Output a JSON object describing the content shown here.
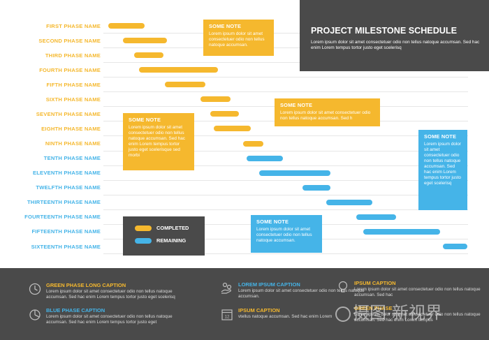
{
  "colors": {
    "yellow": "#f5b82e",
    "blue": "#45b4e8",
    "dark": "#4a4a4a"
  },
  "title": {
    "heading": "PROJECT MILESTONE SCHEDULE",
    "text": "Lorem ipsum dolor sit amet consectetuer odio non tellus natoque accumsan. Sed hac enim Lorem tempus tortor justo eget scelerisq"
  },
  "phases": [
    {
      "name": "FIRST PHASE NAME",
      "status": "completed",
      "start": 0.0,
      "end": 0.101
    },
    {
      "name": "SECOND PHASE NAME",
      "status": "completed",
      "start": 0.041,
      "end": 0.164
    },
    {
      "name": "THIRD PHASE NAME",
      "status": "completed",
      "start": 0.072,
      "end": 0.154
    },
    {
      "name": "FOURTH PHASE NAME",
      "status": "completed",
      "start": 0.085,
      "end": 0.306
    },
    {
      "name": "FIFTH PHASE NAME",
      "status": "completed",
      "start": 0.157,
      "end": 0.271
    },
    {
      "name": "SIXTH PHASE NAME",
      "status": "completed",
      "start": 0.256,
      "end": 0.341
    },
    {
      "name": "SEVENTH PHASE NAME",
      "status": "completed",
      "start": 0.284,
      "end": 0.363
    },
    {
      "name": "EIGHTH PHASE NAME",
      "status": "completed",
      "start": 0.293,
      "end": 0.397
    },
    {
      "name": "NINTH PHASE NAME",
      "status": "completed",
      "start": 0.375,
      "end": 0.432
    },
    {
      "name": "TENTH PHASE NAME",
      "status": "remaining",
      "start": 0.385,
      "end": 0.486
    },
    {
      "name": "ELEVENTH PHASE NAME",
      "status": "remaining",
      "start": 0.42,
      "end": 0.618
    },
    {
      "name": "TWELFTH PHASE NAME",
      "status": "remaining",
      "start": 0.54,
      "end": 0.618
    },
    {
      "name": "THIRTEENTH PHASE NAME",
      "status": "remaining",
      "start": 0.606,
      "end": 0.735
    },
    {
      "name": "FOURTEENTH PHASE NAME",
      "status": "remaining",
      "start": 0.691,
      "end": 0.801
    },
    {
      "name": "FIFTEENTH PHASE NAME",
      "status": "remaining",
      "start": 0.71,
      "end": 0.924
    },
    {
      "name": "SIXTEENTH PHASE NAME",
      "status": "remaining",
      "start": 0.931,
      "end": 1.0
    }
  ],
  "notes": [
    {
      "title": "SOME NOTE",
      "text": "Lorem ipsum dolor sit amet consectetuer odio non tellus natoque accumsan.",
      "color": "yellow"
    },
    {
      "title": "SOME NOTE",
      "text": "Lorem ipsum dolor sit amet consectetuer odio non tellus natoque accumsan. Sed h",
      "color": "yellow"
    },
    {
      "title": "SOME NOTE",
      "text": "Lorem ipsum dolor sit amet consectetuer odio non tellus natoque accumsan. Sed hac enim Lorem tempus tortor justo eget scelerisque sed morbi",
      "color": "yellow"
    },
    {
      "title": "SOME NOTE",
      "text": "Lorem ipsum dolor sit amet consectetuer odio non tellus natoque accumsan. Sed hac enim Lorem tempus tortor justo eget scelerisq",
      "color": "blue"
    },
    {
      "title": "SOME NOTE",
      "text": "Lorem ipsum dolor sit amet consectetuer odio non tellus natoque accumsan.",
      "color": "blue"
    }
  ],
  "legend": {
    "completed": "COMPLETED",
    "remaining": "REMAINING"
  },
  "footer": [
    {
      "caption": "GREEN PHASE LONG CAPTION",
      "text": "Lorem ipsum dolor sit amet consectetuer odio non tellus natoque accumsan. Sed hac enim Lorem tempus tortor justo eget scelerisq",
      "color": "yellow",
      "icon": "clock-icon"
    },
    {
      "caption": "BLUE PHASE CAPTION",
      "text": "Lorem ipsum dolor sit amet consectetuer odio non tellus natoque accumsan. Sed hac enim Lorem tempus tortor justo eget",
      "color": "blue",
      "icon": "pie-chart-icon"
    },
    {
      "caption": "LOREM IPSUM CAPTION",
      "text": "Lorem ipsum dolor sit amet consectetuer odio non tellus natoque accumsan.",
      "color": "blue",
      "icon": "hand-coins-icon"
    },
    {
      "caption": "IPSUM CAPTION",
      "text": "vtellus natoque accumsan. Sed hac enim Lorem",
      "color": "yellow",
      "icon": "calendar-icon"
    },
    {
      "caption": "IPSUM CAPTION",
      "text": "Lorem ipsum dolor sit amet consectetuer odio non tellus natoque accumsan. Sed hac",
      "color": "yellow",
      "icon": "lightbulb-icon"
    },
    {
      "caption": "GREEN PHASE",
      "text": "Lorem ipsum dolor sit amet consectetuer odio non tellus natoque accumsan. Sed hac enim Lorem tempus",
      "color": "yellow",
      "icon": ""
    }
  ],
  "calendar_icon_day": "12",
  "watermark": "摄图·新视界"
}
